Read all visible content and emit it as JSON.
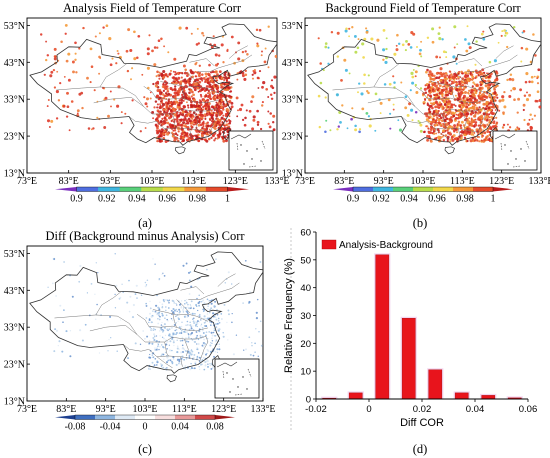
{
  "figure": {
    "panel_labels": [
      "(a)",
      "(b)",
      "(c)",
      "(d)"
    ]
  },
  "maps": [
    {
      "title": "Analysis Field of Temperature  Corr",
      "lat_ticks": [
        "53°N",
        "43°N",
        "33°N",
        "23°N",
        "13°N"
      ],
      "lon_ticks": [
        "73°E",
        "83°E",
        "93°E",
        "103°E",
        "113°E",
        "123°E",
        "133°E"
      ],
      "colorbar_ticks": [
        "0.9",
        "0.92",
        "0.94",
        "0.96",
        "0.98",
        "1"
      ],
      "colorbar_colors": [
        "#7b2fbe",
        "#4f6ee0",
        "#3fb6e0",
        "#59d07a",
        "#b8dc4a",
        "#f1d84a",
        "#f59a3a",
        "#e54a2b",
        "#b81c1c"
      ]
    },
    {
      "title": "Background Field of Temperature  Corr",
      "lat_ticks": [
        "53°N",
        "43°N",
        "33°N",
        "23°N",
        "13°N"
      ],
      "lon_ticks": [
        "73°E",
        "83°E",
        "93°E",
        "103°E",
        "113°E",
        "123°E",
        "133°E"
      ],
      "colorbar_ticks": [
        "0.9",
        "0.92",
        "0.94",
        "0.96",
        "0.98",
        "1"
      ],
      "colorbar_colors": [
        "#7b2fbe",
        "#4f6ee0",
        "#3fb6e0",
        "#59d07a",
        "#b8dc4a",
        "#f1d84a",
        "#f59a3a",
        "#e54a2b",
        "#b81c1c"
      ]
    },
    {
      "title": "Diff (Background minus Analysis)  Corr",
      "lat_ticks": [
        "53°N",
        "43°N",
        "33°N",
        "23°N",
        "13°N"
      ],
      "lon_ticks": [
        "73°E",
        "83°E",
        "93°E",
        "103°E",
        "113°E",
        "123°E",
        "133°E"
      ],
      "colorbar_ticks": [
        "-0.08",
        "-0.04",
        "0",
        "0.04",
        "0.08"
      ],
      "colorbar_colors": [
        "#1d3f8f",
        "#3f6fc0",
        "#8fb6e0",
        "#dfeaf5",
        "#ffffff",
        "#f7dede",
        "#e89a9a",
        "#d04848",
        "#9e1818"
      ]
    }
  ],
  "chart_data": {
    "type": "bar",
    "xlabel": "Diff COR",
    "ylabel": "Relative Frequency (%)",
    "xlim": [
      -0.02,
      0.06
    ],
    "ylim": [
      0,
      60
    ],
    "xticks": [
      "-0.02",
      "0",
      "0.02",
      "0.04",
      "0.06"
    ],
    "yticks": [
      "0",
      "10",
      "20",
      "30",
      "40",
      "50",
      "60"
    ],
    "bar_width": 0.005,
    "series": [
      {
        "name": "Analysis-Background",
        "color": "#e8141c",
        "x": [
          -0.015,
          -0.005,
          0.005,
          0.015,
          0.025,
          0.035,
          0.045,
          0.055
        ],
        "values": [
          0.3,
          2.2,
          51.8,
          29.0,
          10.5,
          2.2,
          1.3,
          0.4
        ]
      }
    ],
    "legend_position": "top-left",
    "grid": false
  }
}
